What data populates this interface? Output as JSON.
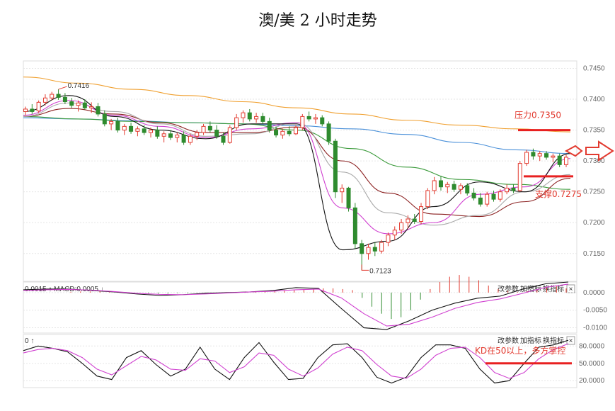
{
  "title": "澳/美 2 小时走势",
  "chart_data": [
    {
      "type": "candlestick",
      "panel": "price",
      "ylim": [
        0.7105,
        0.7462
      ],
      "yticks": [
        "0.7450",
        "0.7400",
        "0.7350",
        "0.7300",
        "0.7250",
        "0.7200",
        "0.7150"
      ],
      "high_label": "0.7416",
      "low_label": "0.7123",
      "annotations": {
        "resistance_label": "压力0.7350",
        "resistance_value": 0.735,
        "support_label": "支撑0.7275",
        "support_value": 0.7275
      },
      "ohlc": [
        [
          0.738,
          0.7388,
          0.7374,
          0.7384
        ],
        [
          0.7384,
          0.7392,
          0.7376,
          0.738
        ],
        [
          0.7381,
          0.7398,
          0.7378,
          0.7395
        ],
        [
          0.7395,
          0.7408,
          0.739,
          0.7402
        ],
        [
          0.7402,
          0.7412,
          0.7398,
          0.7408
        ],
        [
          0.7408,
          0.7416,
          0.7399,
          0.7403
        ],
        [
          0.7403,
          0.741,
          0.7392,
          0.7396
        ],
        [
          0.7396,
          0.7402,
          0.7386,
          0.739
        ],
        [
          0.739,
          0.7398,
          0.738,
          0.7394
        ],
        [
          0.7394,
          0.74,
          0.7383,
          0.7386
        ],
        [
          0.7386,
          0.7395,
          0.7378,
          0.7388
        ],
        [
          0.7388,
          0.7394,
          0.7372,
          0.7376
        ],
        [
          0.7376,
          0.7382,
          0.7356,
          0.736
        ],
        [
          0.736,
          0.7368,
          0.735,
          0.7364
        ],
        [
          0.7364,
          0.737,
          0.7346,
          0.735
        ],
        [
          0.735,
          0.736,
          0.7342,
          0.7356
        ],
        [
          0.7356,
          0.7362,
          0.7344,
          0.7348
        ],
        [
          0.7348,
          0.7356,
          0.734,
          0.7352
        ],
        [
          0.7352,
          0.7358,
          0.7342,
          0.7346
        ],
        [
          0.7346,
          0.7354,
          0.7338,
          0.735
        ],
        [
          0.735,
          0.7356,
          0.7336,
          0.734
        ],
        [
          0.734,
          0.7348,
          0.733,
          0.7344
        ],
        [
          0.7344,
          0.735,
          0.7334,
          0.7338
        ],
        [
          0.7338,
          0.7346,
          0.733,
          0.7342
        ],
        [
          0.7342,
          0.7348,
          0.7326,
          0.733
        ],
        [
          0.733,
          0.7344,
          0.7326,
          0.734
        ],
        [
          0.734,
          0.735,
          0.7334,
          0.7346
        ],
        [
          0.7346,
          0.736,
          0.7342,
          0.7356
        ],
        [
          0.7356,
          0.7364,
          0.7346,
          0.735
        ],
        [
          0.735,
          0.7358,
          0.7336,
          0.734
        ],
        [
          0.734,
          0.7346,
          0.7326,
          0.733
        ],
        [
          0.733,
          0.7358,
          0.7328,
          0.7354
        ],
        [
          0.7354,
          0.7376,
          0.735,
          0.737
        ],
        [
          0.737,
          0.7382,
          0.7362,
          0.7378
        ],
        [
          0.7378,
          0.7384,
          0.7364,
          0.7368
        ],
        [
          0.7368,
          0.7378,
          0.7362,
          0.7372
        ],
        [
          0.7372,
          0.7378,
          0.736,
          0.7364
        ],
        [
          0.7364,
          0.737,
          0.7346,
          0.735
        ],
        [
          0.735,
          0.7356,
          0.7338,
          0.7342
        ],
        [
          0.7342,
          0.7352,
          0.7336,
          0.7348
        ],
        [
          0.7348,
          0.7356,
          0.734,
          0.7344
        ],
        [
          0.7344,
          0.7358,
          0.7342,
          0.7354
        ],
        [
          0.7354,
          0.7376,
          0.735,
          0.7372
        ],
        [
          0.7372,
          0.738,
          0.7364,
          0.7368
        ],
        [
          0.7368,
          0.7376,
          0.736,
          0.737
        ],
        [
          0.737,
          0.7374,
          0.7356,
          0.736
        ],
        [
          0.736,
          0.7364,
          0.7326,
          0.7332
        ],
        [
          0.7332,
          0.7336,
          0.724,
          0.725
        ],
        [
          0.725,
          0.7262,
          0.7232,
          0.7256
        ],
        [
          0.7256,
          0.7258,
          0.7218,
          0.7224
        ],
        [
          0.7224,
          0.7232,
          0.7158,
          0.7166
        ],
        [
          0.7166,
          0.7172,
          0.7123,
          0.715
        ],
        [
          0.715,
          0.7166,
          0.714,
          0.716
        ],
        [
          0.716,
          0.7168,
          0.7146,
          0.7154
        ],
        [
          0.7154,
          0.7172,
          0.715,
          0.7168
        ],
        [
          0.7168,
          0.7184,
          0.7162,
          0.718
        ],
        [
          0.718,
          0.7194,
          0.7172,
          0.7188
        ],
        [
          0.7188,
          0.7206,
          0.7182,
          0.72
        ],
        [
          0.72,
          0.7212,
          0.719,
          0.7206
        ],
        [
          0.7206,
          0.7214,
          0.7198,
          0.7202
        ],
        [
          0.7202,
          0.7232,
          0.7198,
          0.7226
        ],
        [
          0.7226,
          0.7256,
          0.7222,
          0.7252
        ],
        [
          0.7252,
          0.7274,
          0.7246,
          0.7268
        ],
        [
          0.7268,
          0.7276,
          0.7252,
          0.7258
        ],
        [
          0.7258,
          0.7266,
          0.7248,
          0.7262
        ],
        [
          0.7262,
          0.7268,
          0.725,
          0.7254
        ],
        [
          0.7254,
          0.7264,
          0.7246,
          0.726
        ],
        [
          0.726,
          0.7264,
          0.7244,
          0.7248
        ],
        [
          0.7248,
          0.7256,
          0.7236,
          0.724
        ],
        [
          0.724,
          0.7248,
          0.7226,
          0.723
        ],
        [
          0.723,
          0.725,
          0.7226,
          0.7246
        ],
        [
          0.7246,
          0.7252,
          0.7234,
          0.7238
        ],
        [
          0.7238,
          0.7254,
          0.7234,
          0.725
        ],
        [
          0.725,
          0.7262,
          0.7246,
          0.7256
        ],
        [
          0.7256,
          0.7262,
          0.7248,
          0.7252
        ],
        [
          0.7252,
          0.73,
          0.725,
          0.7296
        ],
        [
          0.7296,
          0.7318,
          0.7292,
          0.7314
        ],
        [
          0.7314,
          0.732,
          0.7302,
          0.7308
        ],
        [
          0.7308,
          0.7316,
          0.73,
          0.7312
        ],
        [
          0.7312,
          0.7316,
          0.7302,
          0.7306
        ],
        [
          0.7306,
          0.7312,
          0.7298,
          0.7308
        ],
        [
          0.7308,
          0.7312,
          0.729,
          0.7294
        ],
        [
          0.7294,
          0.731,
          0.729,
          0.7306
        ]
      ],
      "series": [
        {
          "color": "#f0a030",
          "values": [
            0.7436,
            0.7426,
            0.7416,
            0.7406,
            0.7396,
            0.7386,
            0.7376,
            0.7366,
            0.7358,
            0.7352,
            0.7347
          ]
        },
        {
          "color": "#4a90d9",
          "values": [
            0.737,
            0.7368,
            0.7365,
            0.7362,
            0.736,
            0.7357,
            0.7352,
            0.7343,
            0.733,
            0.7318,
            0.7312
          ]
        },
        {
          "color": "#3a9a3a",
          "values": [
            0.7372,
            0.7368,
            0.7364,
            0.7362,
            0.736,
            0.735,
            0.732,
            0.729,
            0.727,
            0.7262,
            0.7254
          ]
        },
        {
          "color": "#8b2020",
          "values": [
            0.7372,
            0.7385,
            0.7376,
            0.7362,
            0.7346,
            0.7346,
            0.7355,
            0.73,
            0.7248,
            0.7214,
            0.721,
            0.7234,
            0.7272
          ]
        },
        {
          "color": "#aaaaaa",
          "values": [
            0.7372,
            0.7394,
            0.738,
            0.736,
            0.734,
            0.7344,
            0.7362,
            0.7282,
            0.7216,
            0.7196,
            0.7212,
            0.725,
            0.7278
          ]
        },
        {
          "color": "#d040d0",
          "values": [
            0.7374,
            0.7398,
            0.7374,
            0.7356,
            0.7338,
            0.7352,
            0.7362,
            0.7224,
            0.7182,
            0.72,
            0.7246,
            0.7258,
            0.7304
          ]
        },
        {
          "color": "#111111",
          "values": [
            0.738,
            0.7406,
            0.7372,
            0.735,
            0.7336,
            0.736,
            0.736,
            0.7156,
            0.717,
            0.7226,
            0.7266,
            0.725,
            0.7312
          ]
        }
      ]
    },
    {
      "type": "bar",
      "panel": "macd",
      "header_left": "0.0015 ↑  MACD:0.0005 ↓",
      "buttons": [
        "改参数",
        "加指标",
        "换指标"
      ],
      "close_symbol": "×",
      "yticks": [
        "0.0000",
        "-0.0050",
        "-0.0100"
      ],
      "ylim": [
        -0.0115,
        0.003
      ],
      "histogram": [
        0.0002,
        0.0003,
        0.0003,
        0.0004,
        0.0003,
        0.0002,
        0.0001,
        0.0,
        -0.0002,
        -0.0003,
        -0.0003,
        -0.0002,
        -0.0002,
        -0.0001,
        -0.0001,
        0.0,
        0.0001,
        0.0002,
        0.0003,
        0.0004,
        0.0004,
        0.0005,
        0.0006,
        0.0007,
        0.0008,
        0.001,
        0.0012,
        0.0012,
        0.001,
        0.0007,
        -0.0015,
        -0.004,
        -0.006,
        -0.0075,
        -0.007,
        -0.005,
        -0.002,
        0.001,
        0.003,
        0.0045,
        0.005,
        0.0045,
        0.0035,
        0.002,
        0.001,
        0.0005,
        0.0002,
        0.0004,
        0.0008,
        0.0015,
        0.0018,
        0.0012
      ],
      "macd_values": [
        0.0008,
        0.001,
        0.001,
        0.0006,
        0.0002,
        -0.0004,
        -0.0008,
        -0.0006,
        -0.0002,
        0.0,
        0.0002,
        0.0006,
        0.0014,
        0.0012,
        -0.0045,
        -0.01,
        -0.0105,
        -0.008,
        -0.005,
        -0.003,
        -0.0016,
        -0.001,
        0.001,
        0.0025,
        0.003
      ],
      "signal_values": [
        0.0006,
        0.0008,
        0.0009,
        0.0007,
        0.0003,
        -0.0002,
        -0.0005,
        -0.0006,
        -0.0004,
        -0.0001,
        0.0002,
        0.0004,
        0.0008,
        0.001,
        -0.0015,
        -0.006,
        -0.0095,
        -0.009,
        -0.007,
        -0.0045,
        -0.0028,
        -0.0018,
        -0.0002,
        0.0015,
        0.0024
      ]
    },
    {
      "type": "line",
      "panel": "kd",
      "header_left": "0 ↑",
      "buttons": [
        "改参数",
        "加指标",
        "换指标"
      ],
      "close_symbol": "×",
      "yticks": [
        "80.0000",
        "50.0000",
        "20.0000"
      ],
      "ylim": [
        8,
        100
      ],
      "annotation": "KD在50以上，多方掌控",
      "annotation_level": 50,
      "k_values": [
        72,
        80,
        76,
        70,
        50,
        28,
        22,
        60,
        72,
        48,
        28,
        40,
        78,
        40,
        22,
        60,
        86,
        52,
        22,
        24,
        60,
        82,
        84,
        60,
        26,
        16,
        26,
        60,
        82,
        82,
        76,
        40,
        16,
        20,
        50,
        78,
        82,
        90
      ],
      "d_values": [
        68,
        74,
        76,
        72,
        60,
        40,
        30,
        46,
        62,
        56,
        40,
        38,
        58,
        54,
        34,
        44,
        68,
        64,
        40,
        28,
        42,
        66,
        78,
        72,
        48,
        28,
        24,
        40,
        64,
        76,
        78,
        60,
        34,
        24,
        34,
        58,
        74,
        84
      ]
    }
  ]
}
